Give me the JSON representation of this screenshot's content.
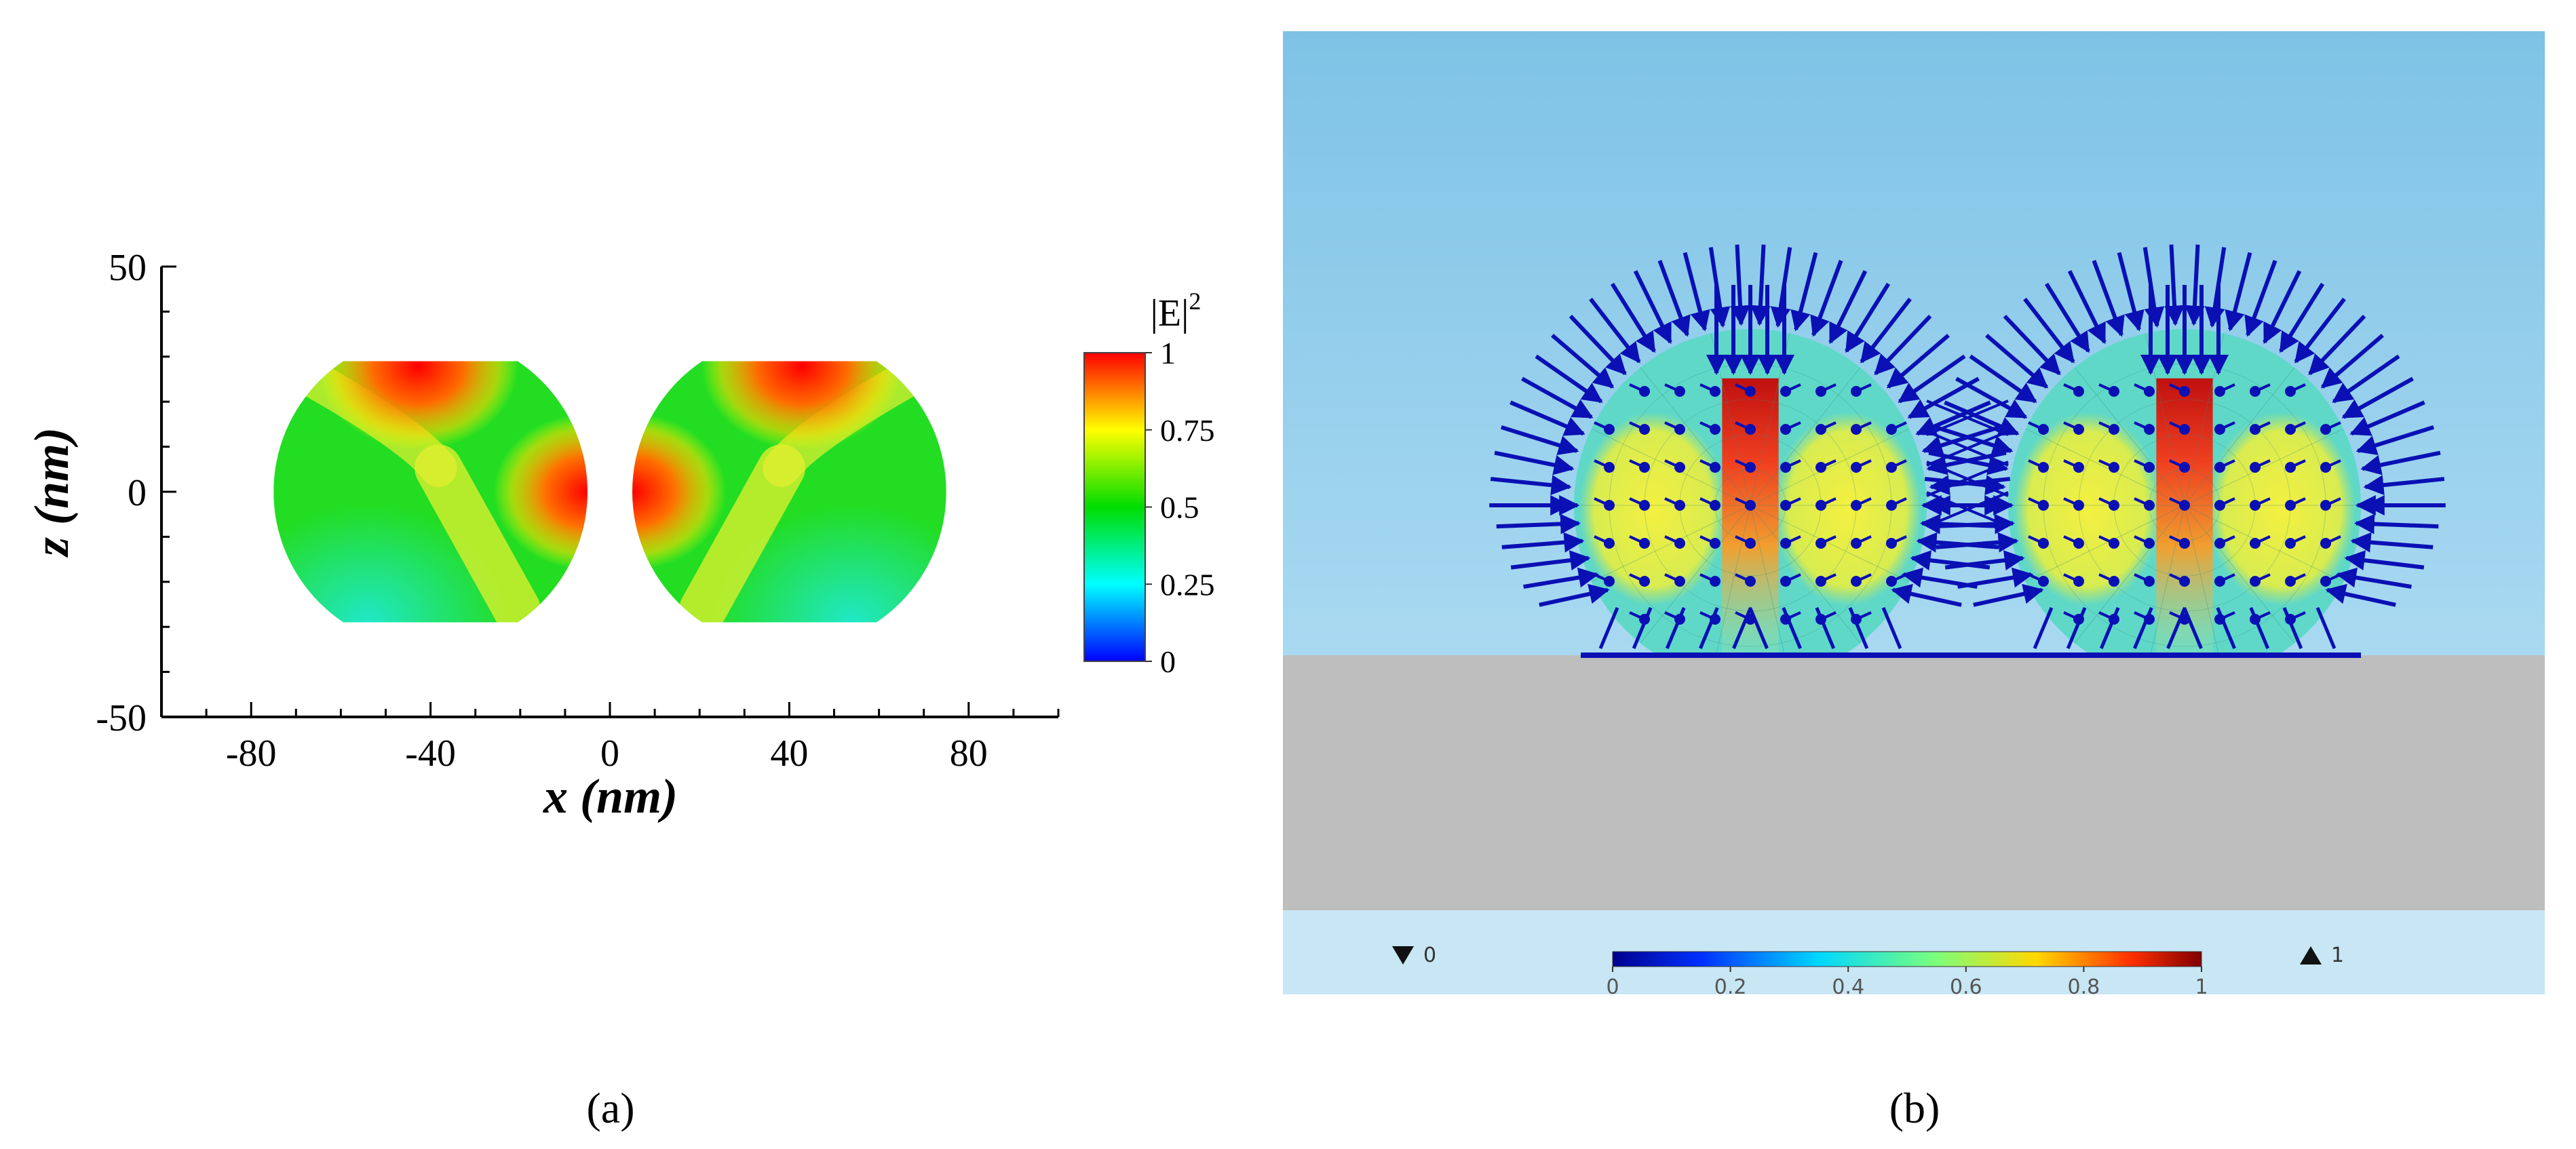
{
  "panel_a": {
    "label": "(a)",
    "chart_data": {
      "type": "heatmap",
      "xlabel": "x (nm)",
      "ylabel": "z (nm)",
      "xlim": [
        -100,
        100
      ],
      "ylim": [
        -50,
        50
      ],
      "x_ticks": [
        "-80",
        "-40",
        "0",
        "40",
        "80"
      ],
      "y_ticks": [
        "50",
        "0",
        "-50"
      ],
      "colorbar": {
        "title": "|E|",
        "title_superscript": "2",
        "range": [
          0,
          1
        ],
        "ticks": [
          "1",
          "0.75",
          "0.5",
          "0.25",
          "0"
        ]
      },
      "particles": [
        {
          "center_x": -40,
          "center_z": 0,
          "radius": 35,
          "truncation_z": [
            -29,
            29
          ],
          "hotspots": [
            "top",
            "gap-side"
          ]
        },
        {
          "center_x": 40,
          "center_z": 0,
          "radius": 35,
          "truncation_z": [
            -29,
            29
          ],
          "hotspots": [
            "top",
            "gap-side"
          ]
        }
      ]
    }
  },
  "panel_b": {
    "label": "(b)",
    "colorbar": {
      "min_label": "0",
      "max_label": "1",
      "ticks": [
        "0",
        "0.2",
        "0.4",
        "0.6",
        "0.8",
        "1"
      ],
      "range": [
        0,
        1
      ]
    },
    "colors": {
      "sky": "#8FCBEA",
      "substrate": "#BEBEBE",
      "footer": "#C8E6F4",
      "arrows": "#0A10B4"
    }
  }
}
